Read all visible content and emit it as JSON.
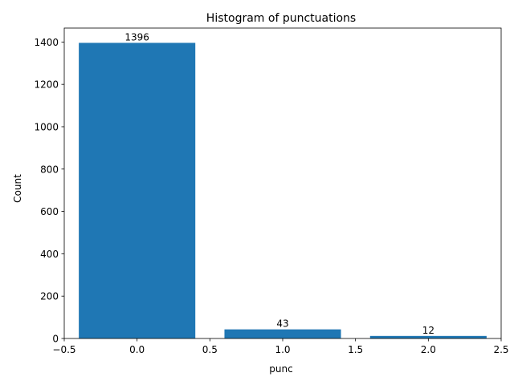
{
  "chart_data": {
    "type": "bar",
    "title": "Histogram of punctuations",
    "xlabel": "punc",
    "ylabel": "Count",
    "x": [
      0,
      1,
      2
    ],
    "values": [
      1396,
      43,
      12
    ],
    "data_labels": [
      "1396",
      "43",
      "12"
    ],
    "bar_width": 0.8,
    "xlim": [
      -0.5,
      2.5
    ],
    "ylim": [
      0,
      1465.8
    ],
    "x_ticks": [
      -0.5,
      0.0,
      0.5,
      1.0,
      1.5,
      2.0,
      2.5
    ],
    "x_tick_labels": [
      "−0.5",
      "0.0",
      "0.5",
      "1.0",
      "1.5",
      "2.0",
      "2.5"
    ],
    "y_ticks": [
      0,
      200,
      400,
      600,
      800,
      1000,
      1200,
      1400
    ],
    "y_tick_labels": [
      "0",
      "200",
      "400",
      "600",
      "800",
      "1000",
      "1200",
      "1400"
    ],
    "grid": false,
    "bar_color": "#1f77b4"
  }
}
